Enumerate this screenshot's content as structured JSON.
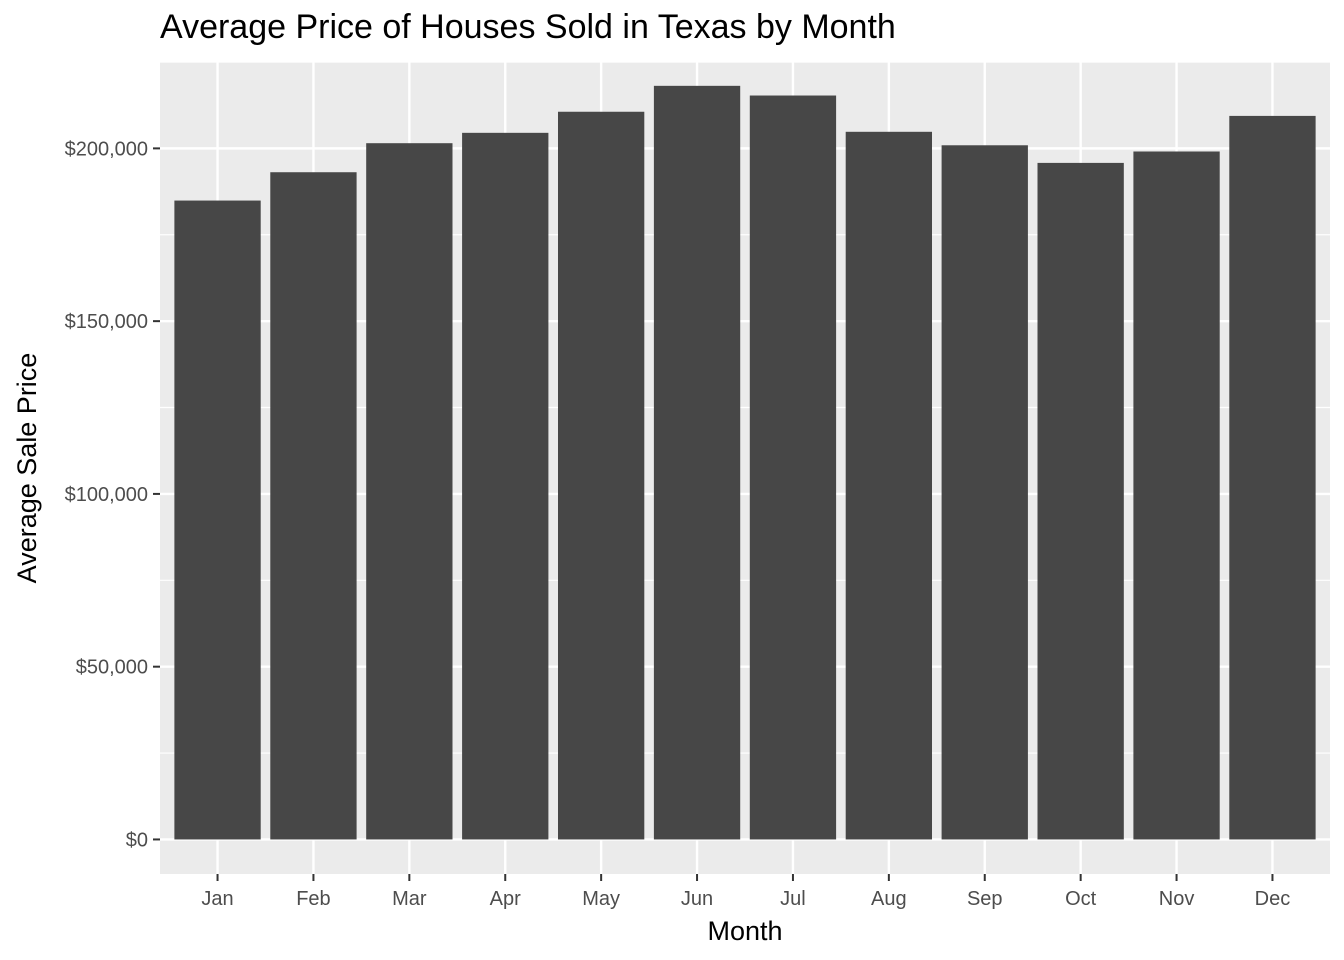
{
  "chart_data": {
    "type": "bar",
    "title": "Average Price of Houses Sold in Texas by Month",
    "xlabel": "Month",
    "ylabel": "Average Sale Price",
    "categories": [
      "Jan",
      "Feb",
      "Mar",
      "Apr",
      "May",
      "Jun",
      "Jul",
      "Aug",
      "Sep",
      "Oct",
      "Nov",
      "Dec"
    ],
    "values": [
      184900,
      193100,
      201500,
      204500,
      210600,
      218100,
      215300,
      204800,
      200900,
      195800,
      199100,
      209400
    ],
    "ylim": [
      -10000,
      225000
    ],
    "yticks": [
      0,
      50000,
      100000,
      150000,
      200000
    ],
    "ytick_labels": [
      "$0",
      "$50,000",
      "$100,000",
      "$150,000",
      "$200,000"
    ],
    "grid": true,
    "colors": {
      "bar": "#474747",
      "panel": "#ebebeb",
      "grid": "#ffffff"
    }
  }
}
